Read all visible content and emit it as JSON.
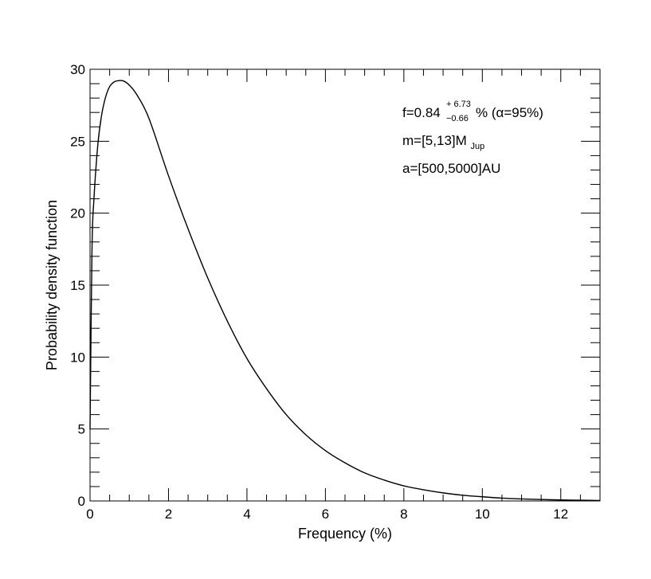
{
  "chart_data": {
    "type": "line",
    "xlabel": "Frequency (%)",
    "ylabel": "Probability density function",
    "xlim": [
      0,
      13
    ],
    "ylim": [
      0,
      30
    ],
    "x_ticks": [
      0,
      2,
      4,
      6,
      8,
      10,
      12
    ],
    "y_ticks": [
      0,
      5,
      10,
      15,
      20,
      25,
      30
    ],
    "grid": false,
    "series": [
      {
        "x": [
          0,
          0.05,
          0.1,
          0.2,
          0.3,
          0.4,
          0.5,
          0.6,
          0.7,
          0.84,
          1.0,
          1.2,
          1.5,
          2.0,
          2.5,
          3.0,
          3.5,
          4.0,
          4.5,
          5.0,
          5.5,
          6.0,
          6.5,
          7.0,
          7.5,
          8.0,
          8.5,
          9.0,
          9.5,
          10.0,
          10.5,
          11.0,
          11.5,
          12.0,
          12.5,
          13.0
        ],
        "y": [
          5.0,
          17.5,
          21.0,
          24.8,
          26.9,
          28.1,
          28.8,
          29.1,
          29.2,
          29.2,
          28.9,
          28.2,
          26.6,
          22.6,
          18.9,
          15.5,
          12.5,
          9.9,
          7.8,
          6.0,
          4.6,
          3.5,
          2.65,
          1.95,
          1.45,
          1.05,
          0.78,
          0.56,
          0.4,
          0.29,
          0.2,
          0.14,
          0.1,
          0.07,
          0.05,
          0.03
        ]
      }
    ],
    "annotations": {
      "line1": {
        "main": "f=0.84",
        "sup": "+ 6.73",
        "sub": "−0.66",
        "tail": "% (α=95%)"
      },
      "line2": {
        "main": "m=[5,13]M",
        "sub": "Jup"
      },
      "line3": {
        "main": "a=[500,5000]AU"
      }
    }
  }
}
